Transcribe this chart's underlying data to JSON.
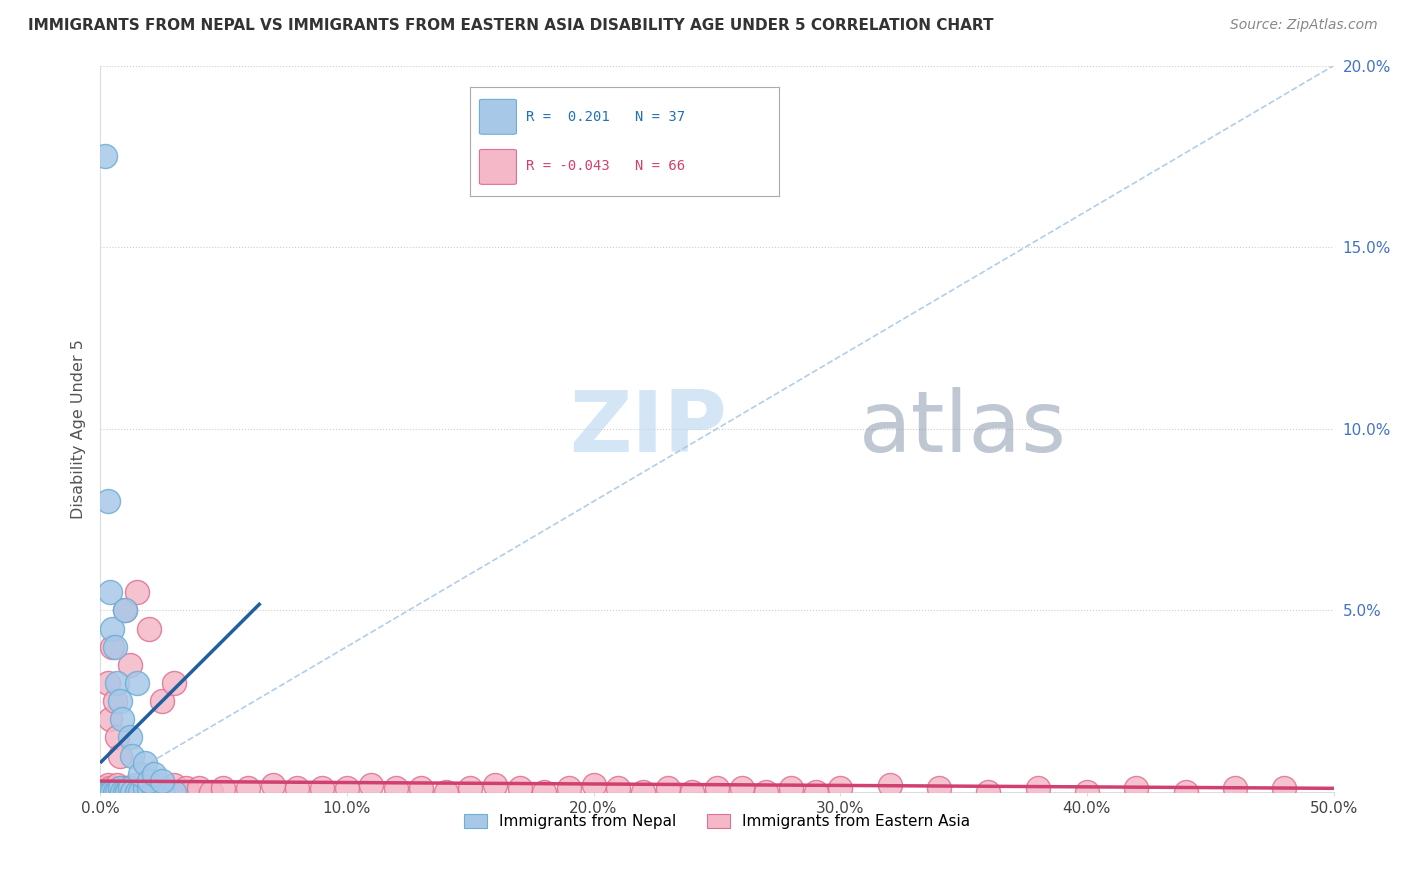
{
  "title": "IMMIGRANTS FROM NEPAL VS IMMIGRANTS FROM EASTERN ASIA DISABILITY AGE UNDER 5 CORRELATION CHART",
  "source": "Source: ZipAtlas.com",
  "ylabel": "Disability Age Under 5",
  "xlim": [
    0.0,
    0.5
  ],
  "ylim": [
    0.0,
    0.2
  ],
  "xtick_vals": [
    0.0,
    0.1,
    0.2,
    0.3,
    0.4,
    0.5
  ],
  "ytick_vals": [
    0.0,
    0.05,
    0.1,
    0.15,
    0.2
  ],
  "ytick_labels": [
    "",
    "5.0%",
    "10.0%",
    "15.0%",
    "20.0%"
  ],
  "xtick_labels": [
    "0.0%",
    "10.0%",
    "20.0%",
    "30.0%",
    "40.0%",
    "50.0%"
  ],
  "nepal_color": "#a8c8e8",
  "nepal_edge_color": "#6baed6",
  "eastern_asia_color": "#f4b8c8",
  "eastern_asia_edge_color": "#e07090",
  "nepal_R": 0.201,
  "nepal_N": 37,
  "eastern_asia_R": -0.043,
  "eastern_asia_N": 66,
  "nepal_trend_color": "#2060a0",
  "eastern_asia_trend_color": "#d04070",
  "diagonal_color": "#aac8e8",
  "grid_color": "#cccccc",
  "watermark": "ZIPatlas",
  "watermark_color_zip": "#a8c8e8",
  "watermark_color_atlas": "#8090a0",
  "legend_label_nepal": "Immigrants from Nepal",
  "legend_label_eastern_asia": "Immigrants from Eastern Asia",
  "nepal_x": [
    0.001,
    0.002,
    0.003,
    0.004,
    0.005,
    0.006,
    0.007,
    0.008,
    0.009,
    0.01,
    0.011,
    0.012,
    0.013,
    0.015,
    0.016,
    0.018,
    0.02,
    0.022,
    0.025,
    0.03,
    0.002,
    0.003,
    0.004,
    0.005,
    0.006,
    0.007,
    0.008,
    0.009,
    0.01,
    0.012,
    0.013,
    0.015,
    0.016,
    0.018,
    0.02,
    0.022,
    0.025
  ],
  "nepal_y": [
    0.0,
    0.0,
    0.0,
    0.0,
    0.0,
    0.0,
    0.0,
    0.001,
    0.0,
    0.0,
    0.0,
    0.001,
    0.0,
    0.0,
    0.0,
    0.001,
    0.001,
    0.0,
    0.001,
    0.0,
    0.175,
    0.08,
    0.055,
    0.045,
    0.04,
    0.03,
    0.025,
    0.02,
    0.05,
    0.015,
    0.01,
    0.03,
    0.005,
    0.008,
    0.003,
    0.005,
    0.003
  ],
  "eastern_asia_x": [
    0.001,
    0.002,
    0.003,
    0.004,
    0.005,
    0.006,
    0.007,
    0.008,
    0.009,
    0.01,
    0.012,
    0.015,
    0.018,
    0.02,
    0.025,
    0.03,
    0.035,
    0.04,
    0.045,
    0.05,
    0.06,
    0.07,
    0.08,
    0.09,
    0.1,
    0.11,
    0.12,
    0.13,
    0.14,
    0.15,
    0.16,
    0.17,
    0.18,
    0.19,
    0.2,
    0.21,
    0.22,
    0.23,
    0.24,
    0.25,
    0.26,
    0.27,
    0.28,
    0.29,
    0.3,
    0.32,
    0.34,
    0.36,
    0.38,
    0.4,
    0.42,
    0.44,
    0.46,
    0.48,
    0.003,
    0.004,
    0.005,
    0.006,
    0.007,
    0.008,
    0.01,
    0.012,
    0.015,
    0.02,
    0.025,
    0.03
  ],
  "eastern_asia_y": [
    0.001,
    0.001,
    0.002,
    0.001,
    0.0,
    0.001,
    0.002,
    0.001,
    0.0,
    0.001,
    0.001,
    0.002,
    0.001,
    0.001,
    0.0,
    0.002,
    0.001,
    0.001,
    0.0,
    0.001,
    0.001,
    0.002,
    0.001,
    0.001,
    0.001,
    0.002,
    0.001,
    0.001,
    0.0,
    0.001,
    0.002,
    0.001,
    0.0,
    0.001,
    0.002,
    0.001,
    0.0,
    0.001,
    0.0,
    0.001,
    0.001,
    0.0,
    0.001,
    0.0,
    0.001,
    0.002,
    0.001,
    0.0,
    0.001,
    0.0,
    0.001,
    0.0,
    0.001,
    0.001,
    0.03,
    0.02,
    0.04,
    0.025,
    0.015,
    0.01,
    0.05,
    0.035,
    0.055,
    0.045,
    0.025,
    0.03
  ]
}
